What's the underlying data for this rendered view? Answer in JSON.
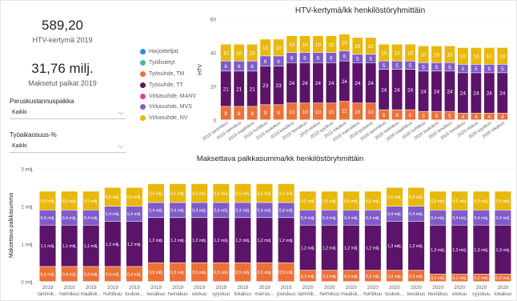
{
  "kpis": {
    "htv_value": "589,20",
    "htv_label": "HTV-kertymä 2019",
    "salary_value": "31,76 milj.",
    "salary_label": "Maksetut palkat 2019"
  },
  "slicers": {
    "cost_center_title": "Peruskustannuspaikka",
    "cost_center_value": "Kaikki",
    "worktime_title": "Työaikaosuus-%",
    "worktime_value": "Kaikki"
  },
  "legend": [
    {
      "name": "Harjoittelijat",
      "color": "#2a8fd6"
    },
    {
      "name": "Työllistetyt",
      "color": "#4fb2a4"
    },
    {
      "name": "Työsuhde, TM",
      "color": "#ec7139"
    },
    {
      "name": "Työsuhde, TT",
      "color": "#5b1469"
    },
    {
      "name": "Virkasuhde, MANV",
      "color": "#e3418b"
    },
    {
      "name": "Virkasuhde, MVS",
      "color": "#7f5cc9"
    },
    {
      "name": "Virkasuhde, NV",
      "color": "#e8b80d"
    }
  ],
  "chart_data": [
    {
      "type": "bar",
      "stacked": true,
      "title": "HTV-kertymä/kk henkilöstöryhmittäin",
      "ylabel": "HTV",
      "xlabel": "",
      "ylim": [
        0,
        60
      ],
      "yticks": [
        "0",
        "20",
        "40",
        "60"
      ],
      "grid": true,
      "categories": [
        "2019 tammikuu",
        "2019 helmikuu",
        "2019 maaliskuu",
        "2019 huhtikuu",
        "2019 toukokuu",
        "2019 kesäkuu",
        "2019 heinäkuu",
        "2019 elokuu",
        "2019 syyskuu",
        "2019 lokakuu",
        "2019 marraskuu",
        "2019 joulukuu",
        "2020 tammikuu",
        "2020 helmikuu",
        "2020 maaliskuu",
        "2020 huhtikuu",
        "2020 toukokuu",
        "2020 kesäkuu",
        "2020 heinäkuu",
        "2020 elokuu",
        "2020 syyskuu",
        "2020 lokakuu"
      ],
      "series": [
        {
          "name": "Työsuhde, TM",
          "color": "#ec7139",
          "values": [
            8,
            8,
            8,
            9,
            9,
            10,
            10,
            10,
            10,
            11,
            10,
            10,
            6,
            6,
            6,
            5,
            5,
            5,
            4,
            4,
            4,
            4
          ],
          "labels": [
            "8",
            "8",
            "8",
            "9",
            "9",
            "10",
            "10",
            "10",
            "10",
            "11",
            "10",
            "10",
            "6",
            "6",
            "6",
            "5",
            "5",
            "5",
            "4",
            "4",
            "4",
            "4"
          ]
        },
        {
          "name": "Työsuhde, TT",
          "color": "#5b1469",
          "values": [
            21,
            21,
            21,
            23,
            23,
            24,
            24,
            24,
            24,
            24,
            24,
            24,
            24,
            24,
            24,
            24,
            24,
            24,
            24,
            24,
            24,
            24
          ],
          "labels": [
            "21",
            "21",
            "21",
            "23",
            "23",
            "24",
            "24",
            "24",
            "24",
            "24",
            "24",
            "24",
            "24",
            "24",
            "24",
            "24",
            "24",
            "24",
            "24",
            "24",
            "24",
            "24"
          ]
        },
        {
          "name": "Virkasuhde, MVS",
          "color": "#7f5cc9",
          "values": [
            6,
            6,
            6,
            6,
            6,
            6,
            6,
            6,
            6,
            6,
            5,
            5,
            5,
            5,
            5,
            5,
            5,
            5,
            5,
            5,
            5,
            5
          ],
          "labels": [
            "6",
            "6",
            "6",
            "6",
            "6",
            "6",
            "6",
            "6",
            "6",
            "6",
            "5",
            "5",
            "5",
            "5",
            "5",
            "5",
            "5",
            "5",
            "5",
            "5",
            "5",
            "5"
          ]
        },
        {
          "name": "Virkasuhde, NV",
          "color": "#e8b80d",
          "values": [
            10,
            10,
            10,
            10,
            10,
            10,
            10,
            10,
            10,
            10,
            10,
            10,
            10,
            10,
            10,
            10,
            10,
            10,
            10,
            10,
            10,
            10
          ],
          "labels": [
            "10",
            "10",
            "10",
            "10",
            "10",
            "10",
            "10",
            "10",
            "10",
            "10",
            "10",
            "10",
            "10",
            "10",
            "10",
            "10",
            "10",
            "10",
            "10",
            "10",
            "10",
            "10"
          ]
        }
      ]
    },
    {
      "type": "bar",
      "stacked": true,
      "title": "Maksettava palkkasumma/kk henkilöstöryhmittäin",
      "ylabel": "Maksettava palkkasumma",
      "xlabel": "",
      "ylim": [
        0,
        3
      ],
      "yticks": [
        "0 milj.",
        "1 milj.",
        "2 milj.",
        "3 milj."
      ],
      "grid": true,
      "categories": [
        "2019 tammik...",
        "2019 helmikuu",
        "2019 maalisk...",
        "2019 huhtikuu",
        "2019 toukok...",
        "2019 kesäkuu",
        "2019 heinäkuu",
        "2019 elokuu",
        "2019 syyskuu",
        "2019 lokakuu",
        "2019 marras...",
        "2019 joulukuu",
        "2020 tammik...",
        "2020 helmikuu",
        "2020 maalisk...",
        "2020 huhtikuu",
        "2020 toukok...",
        "2020 kesäkuu",
        "2020 heinäkuu",
        "2020 elokuu",
        "2020 syyskuu",
        "2020 lokakuu"
      ],
      "series": [
        {
          "name": "Työsuhde, TM",
          "color": "#ec7139",
          "values": [
            0.4,
            0.4,
            0.4,
            0.4,
            0.4,
            0.5,
            0.5,
            0.5,
            0.5,
            0.5,
            0.5,
            0.5,
            0.3,
            0.3,
            0.3,
            0.3,
            0.3,
            0.3,
            0.2,
            0.2,
            0.2,
            0.2
          ],
          "labels": [
            "0,4 milj.",
            "0,4 milj.",
            "0,4 milj.",
            "0,4 milj.",
            "0,4 milj.",
            "0,5 milj.",
            "0,5 milj.",
            "0,5 milj.",
            "0,5 milj.",
            "0,5 milj.",
            "0,5 milj.",
            "0,5 milj.",
            "0,3 milj.",
            "0,3 milj.",
            "0,3 milj.",
            "0,3 milj.",
            "0,3 milj.",
            "0,3 milj.",
            "0,2 milj.",
            "0,2 milj.",
            "0,2 milj.",
            "0,2 milj."
          ]
        },
        {
          "name": "Työsuhde, TT",
          "color": "#5b1469",
          "values": [
            1.1,
            1.1,
            1.1,
            1.2,
            1.2,
            1.2,
            1.2,
            1.2,
            1.2,
            1.2,
            1.2,
            1.2,
            1.2,
            1.2,
            1.2,
            1.2,
            1.3,
            1.3,
            1.3,
            1.3,
            1.3,
            1.3
          ],
          "labels": [
            "1,1 milj.",
            "1,1 milj.",
            "1,1 milj.",
            "1,2 milj.",
            "1,2 milj.",
            "1,2 milj.",
            "1,2 milj.",
            "1,2 milj.",
            "1,2 milj.",
            "1,2 milj.",
            "1,2 milj.",
            "1,2 milj.",
            "1,2 milj.",
            "1,2 milj.",
            "1,2 milj.",
            "1,2 milj.",
            "1,3 milj.",
            "1,3 milj.",
            "1,3 milj.",
            "1,3 milj.",
            "1,3 milj.",
            "1,3 milj."
          ]
        },
        {
          "name": "Virkasuhde, MVS",
          "color": "#7f5cc9",
          "values": [
            0.4,
            0.4,
            0.4,
            0.4,
            0.4,
            0.4,
            0.4,
            0.4,
            0.4,
            0.4,
            0.4,
            0.4,
            0.4,
            0.4,
            0.4,
            0.4,
            0.4,
            0.4,
            0.4,
            0.4,
            0.4,
            0.4
          ],
          "labels": [
            "0,4 milj.",
            "0,4 milj.",
            "0,4 milj.",
            "0,4 milj.",
            "0,4 milj.",
            "0,4 milj.",
            "0,4 milj.",
            "0,4 milj.",
            "0,4 milj.",
            "0,4 milj.",
            "0,4 milj.",
            "0,4 milj.",
            "0,4 milj.",
            "0,4 milj.",
            "0,4 milj.",
            "0,4 milj.",
            "0,4 milj.",
            "0,4 milj.",
            "0,4 milj.",
            "0,4 milj.",
            "0,4 milj.",
            "0,4 milj."
          ]
        },
        {
          "name": "Virkasuhde, NV",
          "color": "#e8b80d",
          "values": [
            0.5,
            0.5,
            0.5,
            0.5,
            0.5,
            0.5,
            0.5,
            0.5,
            0.5,
            0.5,
            0.5,
            0.5,
            0.5,
            0.5,
            0.5,
            0.5,
            0.5,
            0.5,
            0.5,
            0.5,
            0.5,
            0.5
          ],
          "labels": [
            "0,5 milj.",
            "0,5 milj.",
            "0,5 milj.",
            "0,5 milj.",
            "0,5 milj.",
            "0,5 milj.",
            "0,5 milj.",
            "0,5 milj.",
            "0,5 milj.",
            "0,5 milj.",
            "0,5 milj.",
            "0,5 milj.",
            "0,5 milj.",
            "0,5 milj.",
            "0,5 milj.",
            "0,5 milj.",
            "0,5 milj.",
            "0,5 milj.",
            "0,5 milj.",
            "0,5 milj.",
            "0,5 milj.",
            "0,5 milj."
          ]
        }
      ]
    }
  ]
}
